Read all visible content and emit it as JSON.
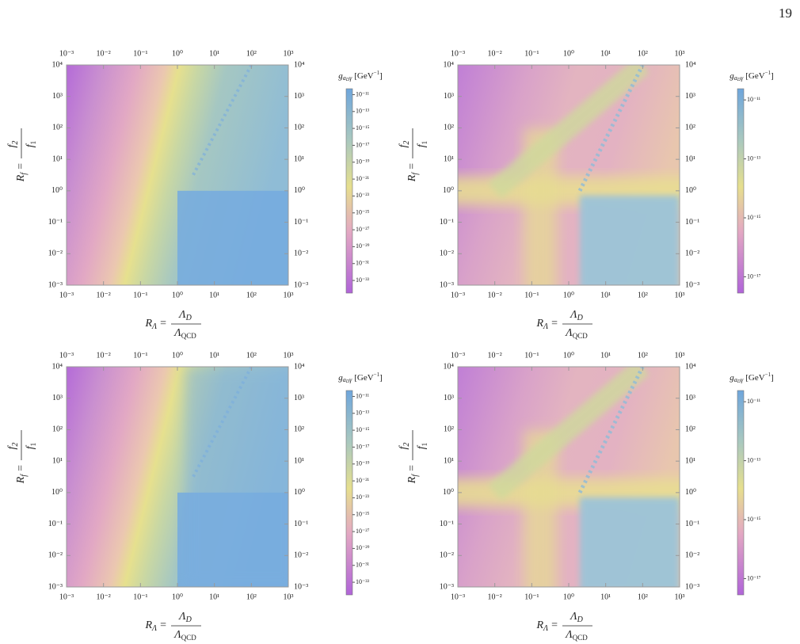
{
  "page_number": "19",
  "chart_data": [
    {
      "type": "heatmap",
      "xscale": "log",
      "yscale": "log",
      "xlim": [
        0.001,
        1000
      ],
      "ylim": [
        0.001,
        10000
      ],
      "xticks": [
        {
          "value": 0.001,
          "label": "10⁻³"
        },
        {
          "value": 0.01,
          "label": "10⁻²"
        },
        {
          "value": 0.1,
          "label": "10⁻¹"
        },
        {
          "value": 1,
          "label": "10⁰"
        },
        {
          "value": 10,
          "label": "10¹"
        },
        {
          "value": 100,
          "label": "10²"
        },
        {
          "value": 1000,
          "label": "10³"
        }
      ],
      "yticks": [
        {
          "value": 0.001,
          "label": "10⁻³"
        },
        {
          "value": 0.01,
          "label": "10⁻²"
        },
        {
          "value": 0.1,
          "label": "10⁻¹"
        },
        {
          "value": 1,
          "label": "10⁰"
        },
        {
          "value": 10,
          "label": "10¹"
        },
        {
          "value": 100,
          "label": "10²"
        },
        {
          "value": 1000,
          "label": "10³"
        },
        {
          "value": 10000,
          "label": "10⁴"
        }
      ],
      "x_label": {
        "left": "R",
        "left_sub": "Λ",
        "eq": "=",
        "num": "Λ",
        "num_sub": "D",
        "den": "Λ",
        "den_sub": "QCD"
      },
      "y_label": {
        "left": "R",
        "left_sub": "f",
        "eq": "=",
        "num": "f",
        "num_sub": "2",
        "den": "f",
        "den_sub": "1"
      },
      "colorbar": {
        "scale": "log",
        "lim": [
          3.2e-35,
          5e-11
        ],
        "label": {
          "symbol": "g",
          "sub": "a",
          "sub_sub": "D",
          "sub2": "γ",
          "unit": "[GeV",
          "unit_exp": "−1",
          "unit_close": "]"
        },
        "ticks": [
          {
            "value": 1e-11,
            "label": "10⁻¹¹"
          },
          {
            "value": 1e-13,
            "label": "10⁻¹³"
          },
          {
            "value": 1e-15,
            "label": "10⁻¹⁵"
          },
          {
            "value": 1e-17,
            "label": "10⁻¹⁷"
          },
          {
            "value": 1e-19,
            "label": "10⁻¹⁹"
          },
          {
            "value": 1e-21,
            "label": "10⁻²¹"
          },
          {
            "value": 1e-23,
            "label": "10⁻²³"
          },
          {
            "value": 1e-25,
            "label": "10⁻²⁵"
          },
          {
            "value": 1e-27,
            "label": "10⁻²⁷"
          },
          {
            "value": 1e-29,
            "label": "10⁻²⁹"
          },
          {
            "value": 1e-31,
            "label": "10⁻³¹"
          },
          {
            "value": 1e-33,
            "label": "10⁻³³"
          }
        ]
      }
    },
    {
      "type": "heatmap",
      "xscale": "log",
      "yscale": "log",
      "xlim": [
        0.001,
        1000
      ],
      "ylim": [
        0.001,
        10000
      ],
      "xticks": [
        {
          "value": 0.001,
          "label": "10⁻³"
        },
        {
          "value": 0.01,
          "label": "10⁻²"
        },
        {
          "value": 0.1,
          "label": "10⁻¹"
        },
        {
          "value": 1,
          "label": "10⁰"
        },
        {
          "value": 10,
          "label": "10¹"
        },
        {
          "value": 100,
          "label": "10²"
        },
        {
          "value": 1000,
          "label": "10³"
        }
      ],
      "yticks": [
        {
          "value": 0.001,
          "label": "10⁻³"
        },
        {
          "value": 0.01,
          "label": "10⁻²"
        },
        {
          "value": 0.1,
          "label": "10⁻¹"
        },
        {
          "value": 1,
          "label": "10⁰"
        },
        {
          "value": 10,
          "label": "10¹"
        },
        {
          "value": 100,
          "label": "10²"
        },
        {
          "value": 1000,
          "label": "10³"
        },
        {
          "value": 10000,
          "label": "10⁴"
        }
      ],
      "x_label": {
        "left": "R",
        "left_sub": "Λ",
        "eq": "=",
        "num": "Λ",
        "num_sub": "D",
        "den": "Λ",
        "den_sub": "QCD"
      },
      "y_label": {
        "left": "R",
        "left_sub": "f",
        "eq": "=",
        "num": "f",
        "num_sub": "2",
        "den": "f",
        "den_sub": "1"
      },
      "colorbar": {
        "scale": "log",
        "lim": [
          2.8e-18,
          2.4e-11
        ],
        "label": {
          "symbol": "g",
          "sub": "a",
          "sub_sub": "D",
          "sub2": "γ",
          "unit": "[GeV",
          "unit_exp": "−1",
          "unit_close": "]"
        },
        "ticks": [
          {
            "value": 1e-11,
            "label": "10⁻¹¹"
          },
          {
            "value": 1e-13,
            "label": "10⁻¹³"
          },
          {
            "value": 1e-15,
            "label": "10⁻¹⁵"
          },
          {
            "value": 1e-17,
            "label": "10⁻¹⁷"
          }
        ]
      }
    },
    {
      "type": "heatmap",
      "xscale": "log",
      "yscale": "log",
      "xlim": [
        0.001,
        1000
      ],
      "ylim": [
        0.001,
        10000
      ],
      "xticks": [
        {
          "value": 0.001,
          "label": "10⁻³"
        },
        {
          "value": 0.01,
          "label": "10⁻²"
        },
        {
          "value": 0.1,
          "label": "10⁻¹"
        },
        {
          "value": 1,
          "label": "10⁰"
        },
        {
          "value": 10,
          "label": "10¹"
        },
        {
          "value": 100,
          "label": "10²"
        },
        {
          "value": 1000,
          "label": "10³"
        }
      ],
      "yticks": [
        {
          "value": 0.001,
          "label": "10⁻³"
        },
        {
          "value": 0.01,
          "label": "10⁻²"
        },
        {
          "value": 0.1,
          "label": "10⁻¹"
        },
        {
          "value": 1,
          "label": "10⁰"
        },
        {
          "value": 10,
          "label": "10¹"
        },
        {
          "value": 100,
          "label": "10²"
        },
        {
          "value": 1000,
          "label": "10³"
        },
        {
          "value": 10000,
          "label": "10⁴"
        }
      ],
      "x_label": {
        "left": "R",
        "left_sub": "Λ",
        "eq": "=",
        "num": "Λ",
        "num_sub": "D",
        "den": "Λ",
        "den_sub": "QCD"
      },
      "y_label": {
        "left": "R",
        "left_sub": "f",
        "eq": "=",
        "num": "f",
        "num_sub": "2",
        "den": "f",
        "den_sub": "1"
      },
      "colorbar": {
        "scale": "log",
        "lim": [
          3.2e-35,
          5e-11
        ],
        "label": {
          "symbol": "g",
          "sub": "a",
          "sub_sub": "D",
          "sub2": "γ",
          "unit": "[GeV",
          "unit_exp": "−1",
          "unit_close": "]"
        },
        "ticks": [
          {
            "value": 1e-11,
            "label": "10⁻¹¹"
          },
          {
            "value": 1e-13,
            "label": "10⁻¹³"
          },
          {
            "value": 1e-15,
            "label": "10⁻¹⁵"
          },
          {
            "value": 1e-17,
            "label": "10⁻¹⁷"
          },
          {
            "value": 1e-19,
            "label": "10⁻¹⁹"
          },
          {
            "value": 1e-21,
            "label": "10⁻²¹"
          },
          {
            "value": 1e-23,
            "label": "10⁻²³"
          },
          {
            "value": 1e-25,
            "label": "10⁻²⁵"
          },
          {
            "value": 1e-27,
            "label": "10⁻²⁷"
          },
          {
            "value": 1e-29,
            "label": "10⁻²⁹"
          },
          {
            "value": 1e-31,
            "label": "10⁻³¹"
          },
          {
            "value": 1e-33,
            "label": "10⁻³³"
          }
        ]
      }
    },
    {
      "type": "heatmap",
      "xscale": "log",
      "yscale": "log",
      "xlim": [
        0.001,
        1000
      ],
      "ylim": [
        0.001,
        10000
      ],
      "xticks": [
        {
          "value": 0.001,
          "label": "10⁻³"
        },
        {
          "value": 0.01,
          "label": "10⁻²"
        },
        {
          "value": 0.1,
          "label": "10⁻¹"
        },
        {
          "value": 1,
          "label": "10⁰"
        },
        {
          "value": 10,
          "label": "10¹"
        },
        {
          "value": 100,
          "label": "10²"
        },
        {
          "value": 1000,
          "label": "10³"
        }
      ],
      "yticks": [
        {
          "value": 0.001,
          "label": "10⁻³"
        },
        {
          "value": 0.01,
          "label": "10⁻²"
        },
        {
          "value": 0.1,
          "label": "10⁻¹"
        },
        {
          "value": 1,
          "label": "10⁰"
        },
        {
          "value": 10,
          "label": "10¹"
        },
        {
          "value": 100,
          "label": "10²"
        },
        {
          "value": 1000,
          "label": "10³"
        },
        {
          "value": 10000,
          "label": "10⁴"
        }
      ],
      "x_label": {
        "left": "R",
        "left_sub": "Λ",
        "eq": "=",
        "num": "Λ",
        "num_sub": "D",
        "den": "Λ",
        "den_sub": "QCD"
      },
      "y_label": {
        "left": "R",
        "left_sub": "f",
        "eq": "=",
        "num": "f",
        "num_sub": "2",
        "den": "f",
        "den_sub": "1"
      },
      "colorbar": {
        "scale": "log",
        "lim": [
          2.8e-18,
          2.4e-11
        ],
        "label": {
          "symbol": "g",
          "sub": "a",
          "sub_sub": "D",
          "sub2": "γ",
          "unit": "[GeV",
          "unit_exp": "−1",
          "unit_close": "]"
        },
        "ticks": [
          {
            "value": 1e-11,
            "label": "10⁻¹¹"
          },
          {
            "value": 1e-13,
            "label": "10⁻¹³"
          },
          {
            "value": 1e-15,
            "label": "10⁻¹⁵"
          },
          {
            "value": 1e-17,
            "label": "10⁻¹⁷"
          }
        ]
      }
    }
  ]
}
